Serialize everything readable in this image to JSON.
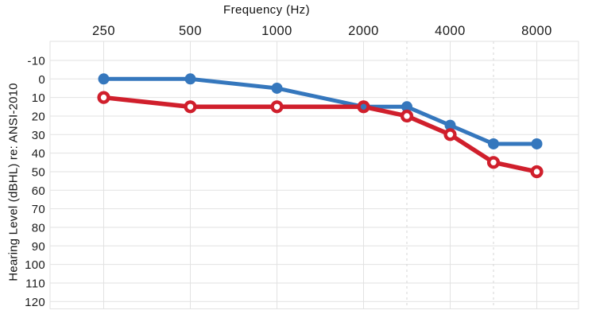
{
  "chart_data": {
    "type": "line",
    "title": "",
    "x_axis": {
      "title": "Frequency (Hz)",
      "scale": "octave-log2",
      "major_ticks": [
        250,
        500,
        1000,
        2000,
        4000,
        8000
      ],
      "minor_dashed_ticks": [
        3000,
        6000
      ],
      "position": "top"
    },
    "y_axis": {
      "title": "Hearing Level (dBHL) re: ANSI-2010",
      "ticks": [
        -10,
        0,
        10,
        20,
        30,
        40,
        50,
        60,
        70,
        80,
        90,
        100,
        110,
        120
      ],
      "direction": "inverted-down",
      "range": [
        -20,
        125
      ],
      "position": "left"
    },
    "series": [
      {
        "name": "blue-thresholds",
        "color": "#3577bd",
        "marker": "filled-circle",
        "line_width": 5,
        "x": [
          250,
          500,
          1000,
          2000,
          3000,
          4000,
          6000,
          8000
        ],
        "y": [
          0,
          0,
          5,
          15,
          15,
          25,
          35,
          35
        ]
      },
      {
        "name": "red-thresholds",
        "color": "#d01f2c",
        "marker": "open-circle",
        "line_width": 5.6,
        "x": [
          250,
          500,
          1000,
          2000,
          3000,
          4000,
          6000,
          8000
        ],
        "y": [
          10,
          15,
          15,
          15,
          20,
          30,
          45,
          50
        ]
      }
    ],
    "grid": {
      "show": true,
      "line_color": "#e2e2e2",
      "dashed_line_color": "#d6d6d6",
      "background": "#ffffff"
    },
    "text_color": "#1b1b1b",
    "legend": "none"
  }
}
